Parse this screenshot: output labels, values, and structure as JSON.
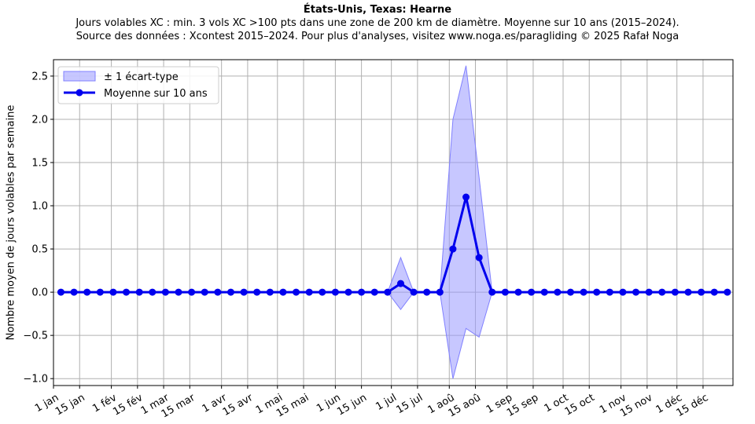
{
  "title": "États-Unis, Texas: Hearne",
  "subtitle1": "Jours volables XC : min. 3 vols XC >100 pts dans une zone de 200 km de diamètre. Moyenne sur 10 ans (2015–2024).",
  "subtitle2": "Source des données : Xcontest 2015–2024. Pour plus d'analyses, visitez www.noga.es/paragliding © 2025 Rafał Noga",
  "colors": {
    "mean": "#0000ee",
    "band": "#9999ff",
    "grid": "#b0b0b0"
  },
  "chart_data": {
    "type": "line",
    "title": "États-Unis, Texas: Hearne",
    "xlabel": "",
    "ylabel": "Nombre moyen de jours volables par semaine",
    "ylim": [
      -1.08,
      2.69
    ],
    "xlim": [
      0,
      52
    ],
    "yticks": [
      -1.0,
      -0.5,
      0.0,
      0.5,
      1.0,
      1.5,
      2.0,
      2.5
    ],
    "ytick_labels": [
      "−1.0",
      "−0.5",
      "0.0",
      "0.5",
      "1.0",
      "1.5",
      "2.0",
      "2.5"
    ],
    "xticks": [
      {
        "pos": 0,
        "label": "1 jan"
      },
      {
        "pos": 2,
        "label": "15 jan"
      },
      {
        "pos": 4.43,
        "label": "1 fév"
      },
      {
        "pos": 6.43,
        "label": "15 fév"
      },
      {
        "pos": 8.43,
        "label": "1 mar"
      },
      {
        "pos": 10.43,
        "label": "15 mar"
      },
      {
        "pos": 12.86,
        "label": "1 avr"
      },
      {
        "pos": 14.86,
        "label": "15 avr"
      },
      {
        "pos": 17.14,
        "label": "1 mai"
      },
      {
        "pos": 19.14,
        "label": "15 mai"
      },
      {
        "pos": 21.57,
        "label": "1 jun"
      },
      {
        "pos": 23.57,
        "label": "15 jun"
      },
      {
        "pos": 25.86,
        "label": "1 jul"
      },
      {
        "pos": 27.86,
        "label": "15 jul"
      },
      {
        "pos": 30.29,
        "label": "1 aoû"
      },
      {
        "pos": 32.29,
        "label": "15 aoû"
      },
      {
        "pos": 34.71,
        "label": "1 sep"
      },
      {
        "pos": 36.71,
        "label": "15 sep"
      },
      {
        "pos": 39.0,
        "label": "1 oct"
      },
      {
        "pos": 41.0,
        "label": "15 oct"
      },
      {
        "pos": 43.43,
        "label": "1 nov"
      },
      {
        "pos": 45.43,
        "label": "15 nov"
      },
      {
        "pos": 47.71,
        "label": "1 déc"
      },
      {
        "pos": 49.71,
        "label": "15 déc"
      }
    ],
    "x": [
      0.57,
      1.57,
      2.57,
      3.57,
      4.57,
      5.57,
      6.57,
      7.57,
      8.57,
      9.57,
      10.57,
      11.57,
      12.57,
      13.57,
      14.57,
      15.57,
      16.57,
      17.57,
      18.57,
      19.57,
      20.57,
      21.57,
      22.57,
      23.57,
      24.57,
      25.57,
      26.57,
      27.57,
      28.57,
      29.57,
      30.57,
      31.57,
      32.57,
      33.57,
      34.57,
      35.57,
      36.57,
      37.57,
      38.57,
      39.57,
      40.57,
      41.57,
      42.57,
      43.57,
      44.57,
      45.57,
      46.57,
      47.57,
      48.57,
      49.57,
      50.57,
      51.57
    ],
    "series": [
      {
        "name": "Moyenne sur 10 ans",
        "values": [
          0,
          0,
          0,
          0,
          0,
          0,
          0,
          0,
          0,
          0,
          0,
          0,
          0,
          0,
          0,
          0,
          0,
          0,
          0,
          0,
          0,
          0,
          0,
          0,
          0,
          0,
          0.1,
          0,
          0,
          0,
          0.5,
          1.1,
          0.4,
          0,
          0,
          0,
          0,
          0,
          0,
          0,
          0,
          0,
          0,
          0,
          0,
          0,
          0,
          0,
          0,
          0,
          0,
          0
        ]
      }
    ],
    "band": {
      "name": "± 1 écart-type",
      "upper": [
        0,
        0,
        0,
        0,
        0,
        0,
        0,
        0,
        0,
        0,
        0,
        0,
        0,
        0,
        0,
        0,
        0,
        0,
        0,
        0,
        0,
        0,
        0,
        0,
        0,
        0,
        0.4,
        0,
        0,
        0,
        2.0,
        2.62,
        1.33,
        0,
        0,
        0,
        0,
        0,
        0,
        0,
        0,
        0,
        0,
        0,
        0,
        0,
        0,
        0,
        0,
        0,
        0,
        0
      ],
      "lower": [
        0,
        0,
        0,
        0,
        0,
        0,
        0,
        0,
        0,
        0,
        0,
        0,
        0,
        0,
        0,
        0,
        0,
        0,
        0,
        0,
        0,
        0,
        0,
        0,
        0,
        0,
        -0.2,
        0,
        0,
        0,
        -1.0,
        -0.42,
        -0.52,
        0,
        0,
        0,
        0,
        0,
        0,
        0,
        0,
        0,
        0,
        0,
        0,
        0,
        0,
        0,
        0,
        0,
        0,
        0
      ]
    },
    "grid": true,
    "legend_position": "upper-left"
  }
}
